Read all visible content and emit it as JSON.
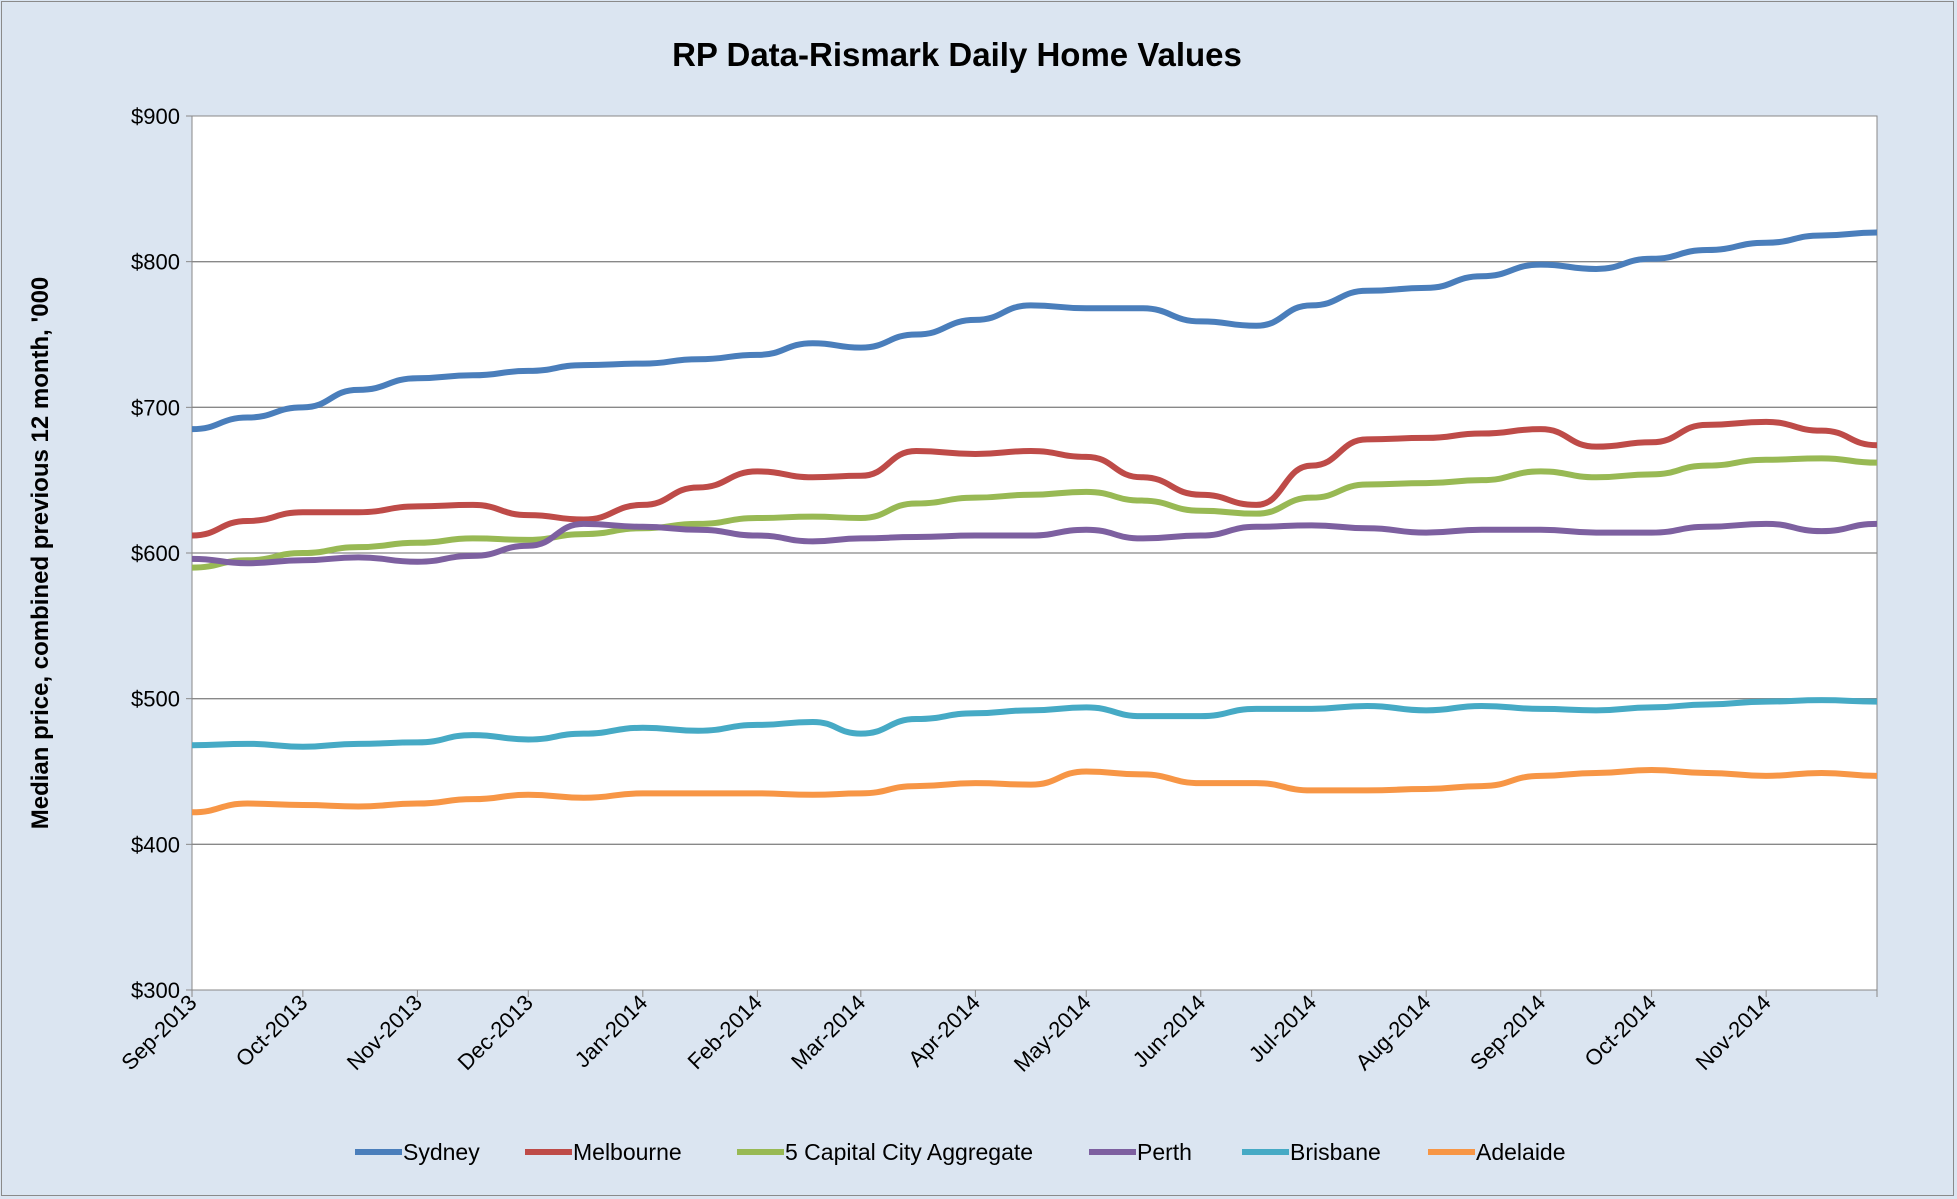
{
  "chart_data": {
    "type": "line",
    "title": "RP Data-Rismark Daily Home Values",
    "xlabel": "",
    "ylabel": "Median price, combined previous 12 month, '000",
    "ylim": [
      300,
      900
    ],
    "yticks": [
      300,
      400,
      500,
      600,
      700,
      800,
      900
    ],
    "ytick_labels": [
      "$300",
      "$400",
      "$500",
      "$600",
      "$700",
      "$800",
      "$900"
    ],
    "xlim": [
      "2013-09-01",
      "2014-12-01"
    ],
    "xtick_labels": [
      "Sep-2013",
      "Oct-2013",
      "Nov-2013",
      "Dec-2013",
      "Jan-2014",
      "Feb-2014",
      "Mar-2014",
      "Apr-2014",
      "May-2014",
      "Jun-2014",
      "Jul-2014",
      "Aug-2014",
      "Sep-2014",
      "Oct-2014",
      "Nov-2014"
    ],
    "grid": "horizontal",
    "legend_position": "bottom",
    "x": [
      "2013-09-01",
      "2013-09-16",
      "2013-10-01",
      "2013-10-16",
      "2013-11-01",
      "2013-11-16",
      "2013-12-01",
      "2013-12-16",
      "2014-01-01",
      "2014-01-16",
      "2014-02-01",
      "2014-02-16",
      "2014-03-01",
      "2014-03-16",
      "2014-04-01",
      "2014-04-16",
      "2014-05-01",
      "2014-05-16",
      "2014-06-01",
      "2014-06-16",
      "2014-07-01",
      "2014-07-16",
      "2014-08-01",
      "2014-08-16",
      "2014-09-01",
      "2014-09-16",
      "2014-10-01",
      "2014-10-16",
      "2014-11-01",
      "2014-11-16",
      "2014-12-01"
    ],
    "series": [
      {
        "name": "Sydney",
        "color": "#4a7ebb",
        "values": [
          685,
          693,
          700,
          712,
          720,
          722,
          725,
          729,
          730,
          733,
          736,
          744,
          741,
          750,
          760,
          770,
          768,
          768,
          759,
          756,
          770,
          780,
          782,
          790,
          798,
          795,
          802,
          808,
          813,
          818,
          820
        ]
      },
      {
        "name": "Melbourne",
        "color": "#be4b48",
        "values": [
          612,
          622,
          628,
          628,
          632,
          633,
          626,
          623,
          633,
          645,
          656,
          652,
          653,
          670,
          668,
          670,
          666,
          652,
          640,
          633,
          660,
          678,
          679,
          682,
          685,
          673,
          676,
          688,
          690,
          684,
          674
        ]
      },
      {
        "name": "5 Capital City Aggregate",
        "color": "#98b954",
        "values": [
          590,
          595,
          600,
          604,
          607,
          610,
          609,
          613,
          617,
          620,
          624,
          625,
          624,
          634,
          638,
          640,
          642,
          636,
          629,
          627,
          638,
          647,
          648,
          650,
          656,
          652,
          654,
          660,
          664,
          665,
          662
        ]
      },
      {
        "name": "Perth",
        "color": "#7d60a0",
        "values": [
          596,
          593,
          595,
          597,
          594,
          598,
          605,
          620,
          618,
          616,
          612,
          608,
          610,
          611,
          612,
          612,
          616,
          610,
          612,
          618,
          619,
          617,
          614,
          616,
          616,
          614,
          614,
          618,
          620,
          615,
          620
        ]
      },
      {
        "name": "Brisbane",
        "color": "#46aac5",
        "values": [
          468,
          469,
          467,
          469,
          470,
          475,
          472,
          476,
          480,
          478,
          482,
          484,
          476,
          486,
          490,
          492,
          494,
          488,
          488,
          493,
          493,
          495,
          492,
          495,
          493,
          492,
          494,
          496,
          498,
          499,
          498
        ]
      },
      {
        "name": "Adelaide",
        "color": "#f79646",
        "values": [
          422,
          428,
          427,
          426,
          428,
          431,
          434,
          432,
          435,
          435,
          435,
          434,
          435,
          440,
          442,
          441,
          450,
          448,
          442,
          442,
          437,
          437,
          438,
          440,
          447,
          449,
          451,
          449,
          447,
          449,
          447
        ]
      }
    ]
  }
}
